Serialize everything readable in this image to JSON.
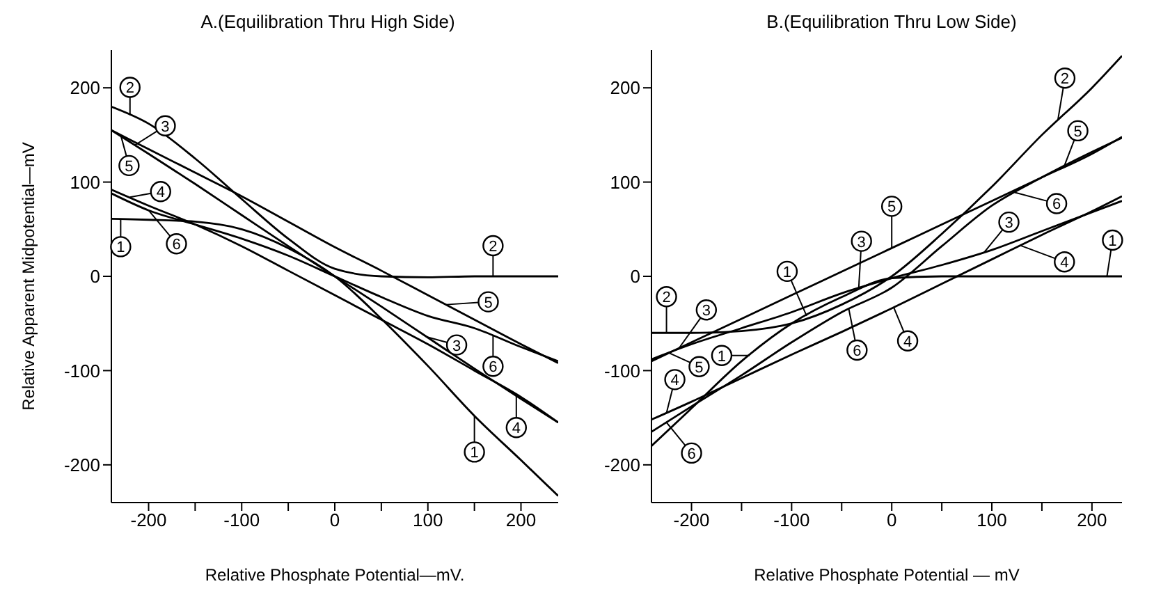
{
  "chart_data": [
    {
      "type": "line",
      "title": "A.(Equilibration Thru High Side)",
      "xlabel": "Relative Phosphate Potential—mV.",
      "ylabel": "Relative Apparent Midpotential—mV",
      "x": [
        -240,
        -200,
        -150,
        -100,
        -50,
        0,
        50,
        100,
        150,
        200,
        240
      ],
      "series": [
        {
          "color": "#000000",
          "values": [
            61,
            60,
            58,
            50,
            30,
            0,
            -45,
            -95,
            -148,
            -195,
            -233
          ]
        },
        {
          "color": "#000000",
          "values": [
            180,
            162,
            125,
            82,
            40,
            8,
            0,
            -1,
            0,
            0,
            0
          ]
        },
        {
          "color": "#000000",
          "values": [
            155,
            130,
            98,
            65,
            32,
            0,
            -32,
            -65,
            -98,
            -130,
            -155
          ]
        },
        {
          "color": "#000000",
          "values": [
            92,
            75,
            55,
            32,
            6,
            -20,
            -46,
            -72,
            -100,
            -128,
            -155
          ]
        },
        {
          "color": "#000000",
          "values": [
            155,
            135,
            110,
            85,
            58,
            31,
            6,
            -20,
            -46,
            -72,
            -92
          ]
        },
        {
          "color": "#000000",
          "values": [
            88,
            70,
            55,
            40,
            22,
            0,
            -22,
            -42,
            -55,
            -75,
            -90
          ]
        }
      ],
      "xlim": [
        -240,
        240
      ],
      "ylim": [
        -240,
        240
      ],
      "xticks": [
        -200,
        {
          "value": -150,
          "label": null
        },
        -100,
        {
          "value": -50,
          "label": null
        },
        0,
        {
          "value": 50,
          "label": null
        },
        100,
        {
          "value": 150,
          "label": null
        },
        200
      ],
      "yticks": [
        -200,
        -100,
        0,
        100,
        200
      ],
      "grid": false,
      "legend": false,
      "annotations": [
        {
          "text": "2",
          "x": -220,
          "y": 171
        },
        {
          "text": "3",
          "x": -215,
          "y": 139
        },
        {
          "text": "5",
          "x": -230,
          "y": 150
        },
        {
          "text": "4",
          "x": -220,
          "y": 84
        },
        {
          "text": "1",
          "x": -230,
          "y": 61
        },
        {
          "text": "6",
          "x": -200,
          "y": 70
        },
        {
          "text": "2",
          "x": 170,
          "y": 0
        },
        {
          "text": "5",
          "x": 120,
          "y": -30
        },
        {
          "text": "6",
          "x": 170,
          "y": -63
        },
        {
          "text": "3",
          "x": 98,
          "y": -64
        },
        {
          "text": "4",
          "x": 195,
          "y": -125
        },
        {
          "text": "1",
          "x": 150,
          "y": -148
        }
      ]
    },
    {
      "type": "line",
      "title": "B.(Equilibration Thru Low Side)",
      "xlabel": "Relative Phosphate Potential — mV",
      "x": [
        -240,
        -200,
        -150,
        -100,
        -50,
        0,
        50,
        100,
        150,
        200,
        230
      ],
      "series": [
        {
          "color": "#000000",
          "values": [
            -180,
            -140,
            -90,
            -50,
            -22,
            -2,
            0,
            0,
            0,
            0,
            0
          ]
        },
        {
          "color": "#000000",
          "values": [
            -60,
            -60,
            -58,
            -50,
            -30,
            0,
            45,
            95,
            150,
            200,
            234
          ]
        },
        {
          "color": "#000000",
          "values": [
            -88,
            -72,
            -55,
            -38,
            -18,
            -2,
            12,
            28,
            48,
            68,
            80
          ]
        },
        {
          "color": "#000000",
          "values": [
            -152,
            -133,
            -108,
            -83,
            -59,
            -34,
            -8,
            18,
            44,
            69,
            85
          ]
        },
        {
          "color": "#000000",
          "values": [
            -90,
            -70,
            -45,
            -20,
            5,
            30,
            55,
            80,
            105,
            130,
            148
          ]
        },
        {
          "color": "#000000",
          "values": [
            -165,
            -138,
            -105,
            -70,
            -38,
            -12,
            32,
            75,
            105,
            132,
            147
          ]
        }
      ],
      "xlim": [
        -240,
        230
      ],
      "ylim": [
        -240,
        240
      ],
      "xticks": [
        -200,
        {
          "value": -150,
          "label": null
        },
        -100,
        {
          "value": -50,
          "label": null
        },
        0,
        {
          "value": 50,
          "label": null
        },
        100,
        {
          "value": 150,
          "label": null
        },
        200
      ],
      "yticks": [
        -200,
        -100,
        0,
        100,
        200
      ],
      "grid": false,
      "legend": false,
      "annotations": [
        {
          "text": "2",
          "x": 166,
          "y": 166
        },
        {
          "text": "5",
          "x": 172,
          "y": 116
        },
        {
          "text": "6",
          "x": 123,
          "y": 89
        },
        {
          "text": "3",
          "x": 92,
          "y": 25
        },
        {
          "text": "4",
          "x": 128,
          "y": 33
        },
        {
          "text": "1",
          "x": 215,
          "y": 0
        },
        {
          "text": "5",
          "x": 0,
          "y": 30
        },
        {
          "text": "3",
          "x": -33,
          "y": -13
        },
        {
          "text": "1",
          "x": -85,
          "y": -42
        },
        {
          "text": "6",
          "x": -43,
          "y": -34
        },
        {
          "text": "4",
          "x": 2,
          "y": -33
        },
        {
          "text": "2",
          "x": -225,
          "y": -60
        },
        {
          "text": "3",
          "x": -213,
          "y": -77
        },
        {
          "text": "5",
          "x": -223,
          "y": -81
        },
        {
          "text": "1",
          "x": -142,
          "y": -84
        },
        {
          "text": "4",
          "x": -225,
          "y": -145
        },
        {
          "text": "6",
          "x": -225,
          "y": -155
        }
      ]
    }
  ]
}
